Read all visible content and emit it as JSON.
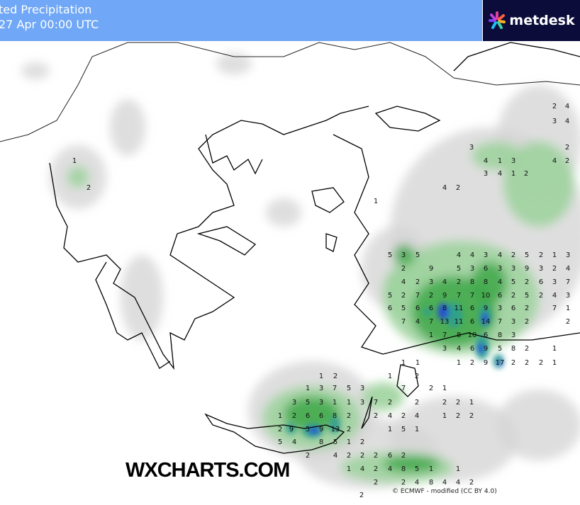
{
  "header": {
    "title_line1": "ted Precipitation",
    "title_line2": "27 Apr 00:00 UTC",
    "background_color": "#64a0f5"
  },
  "logo": {
    "text": "metdesk",
    "icon": "metdesk-starburst-icon",
    "background_color": "#0b0c3a"
  },
  "watermark": "WXCHARTS.COM",
  "credit": "© ECMWF - modified (CC BY 4.0)",
  "colors": {
    "light": "#d6d6d6",
    "low": "#9fd39f",
    "mid": "#3fa84a",
    "high": "#2e9e8f",
    "peak": "#2348d8",
    "coast": "#000000"
  },
  "grid_values": [
    [
      5,
      3,
      5,
      4,
      4,
      3,
      4,
      2,
      5,
      2,
      1,
      3
    ],
    [
      2,
      9,
      5,
      3,
      6,
      3,
      3,
      9,
      3,
      2,
      4
    ],
    [
      4,
      2,
      3,
      4,
      2,
      8,
      8,
      4,
      5,
      2,
      6,
      3,
      7
    ],
    [
      5,
      2,
      7,
      2,
      9,
      7,
      7,
      10,
      6,
      2,
      5,
      2,
      4,
      3
    ],
    [
      6,
      5,
      6,
      6,
      8,
      11,
      6,
      9,
      3,
      6,
      2,
      7,
      1
    ],
    [
      7,
      4,
      7,
      13,
      11,
      6,
      14,
      7,
      3,
      2,
      2
    ],
    [
      1,
      7,
      8,
      10,
      6,
      8,
      3
    ],
    [
      3,
      4,
      6,
      9,
      5,
      8,
      2,
      1
    ],
    [
      1,
      1,
      1,
      2,
      9,
      17,
      2,
      2,
      2,
      1
    ],
    [
      1,
      2,
      1,
      2
    ],
    [
      1,
      3,
      7,
      5,
      3,
      7,
      2,
      1
    ],
    [
      3,
      5,
      3,
      1,
      1,
      3,
      7,
      2,
      2,
      2,
      2,
      1
    ],
    [
      1,
      2,
      6,
      6,
      8,
      2,
      2,
      4,
      2,
      4,
      1,
      2,
      2
    ],
    [
      2,
      9,
      5,
      9,
      13,
      2,
      1,
      5,
      1
    ],
    [
      5,
      4,
      8,
      5,
      1,
      2
    ],
    [
      2,
      4,
      2,
      2,
      2,
      6,
      2
    ],
    [
      1,
      4,
      2,
      4,
      8,
      5,
      1,
      1
    ],
    [
      2,
      2,
      4,
      8,
      4,
      4,
      2
    ],
    [
      2,
      4,
      3,
      4,
      2,
      3,
      4,
      1,
      3,
      4,
      2,
      3,
      4,
      1,
      2,
      4,
      2,
      1,
      2,
      1,
      2
    ]
  ]
}
